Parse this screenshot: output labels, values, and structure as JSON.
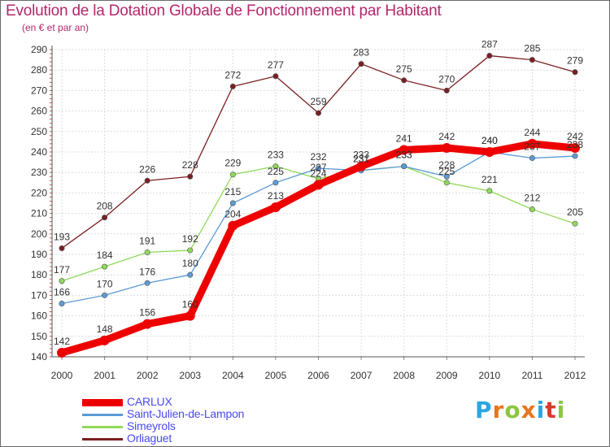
{
  "title": "Evolution de la Dotation Globale de Fonctionnement par Habitant",
  "subtitle": "(en € et par an)",
  "logo": {
    "letters": [
      "P",
      "r",
      "o",
      "x",
      "i",
      "t",
      "i"
    ],
    "colors": [
      "#2aa6e0",
      "#e8761c",
      "#8cc63f",
      "#e8761c",
      "#2aa6e0",
      "#d83a2a",
      "#8cc63f"
    ]
  },
  "chart_data": {
    "type": "line",
    "title": "Evolution de la Dotation Globale de Fonctionnement par Habitant",
    "subtitle": "(en € et par an)",
    "xlabel": "",
    "ylabel": "",
    "x": [
      "2000",
      "2001",
      "2002",
      "2003",
      "2004",
      "2005",
      "2006",
      "2007",
      "2008",
      "2009",
      "2010",
      "2011",
      "2012"
    ],
    "ylim": [
      140,
      290
    ],
    "yticks": [
      140,
      150,
      160,
      170,
      180,
      190,
      200,
      210,
      220,
      230,
      240,
      250,
      260,
      270,
      280,
      290
    ],
    "grid": true,
    "legend_position": "bottom-left",
    "series": [
      {
        "name": "CARLUX",
        "color": "#ee0000",
        "values": [
          142,
          148,
          156,
          160,
          204,
          213,
          224,
          233,
          241,
          242,
          240,
          244,
          242
        ]
      },
      {
        "name": "Saint-Julien-de-Lampon",
        "color": "#5b9bd5",
        "values": [
          166,
          170,
          176,
          180,
          215,
          225,
          232,
          231,
          233,
          228,
          240,
          237,
          238
        ]
      },
      {
        "name": "Simeyrols",
        "color": "#8fd95a",
        "values": [
          177,
          184,
          191,
          192,
          229,
          233,
          227,
          231,
          233,
          225,
          221,
          212,
          205
        ]
      },
      {
        "name": "Orliaguet",
        "color": "#7a1f22",
        "values": [
          193,
          208,
          226,
          228,
          272,
          277,
          259,
          283,
          275,
          270,
          287,
          285,
          279
        ]
      }
    ]
  }
}
